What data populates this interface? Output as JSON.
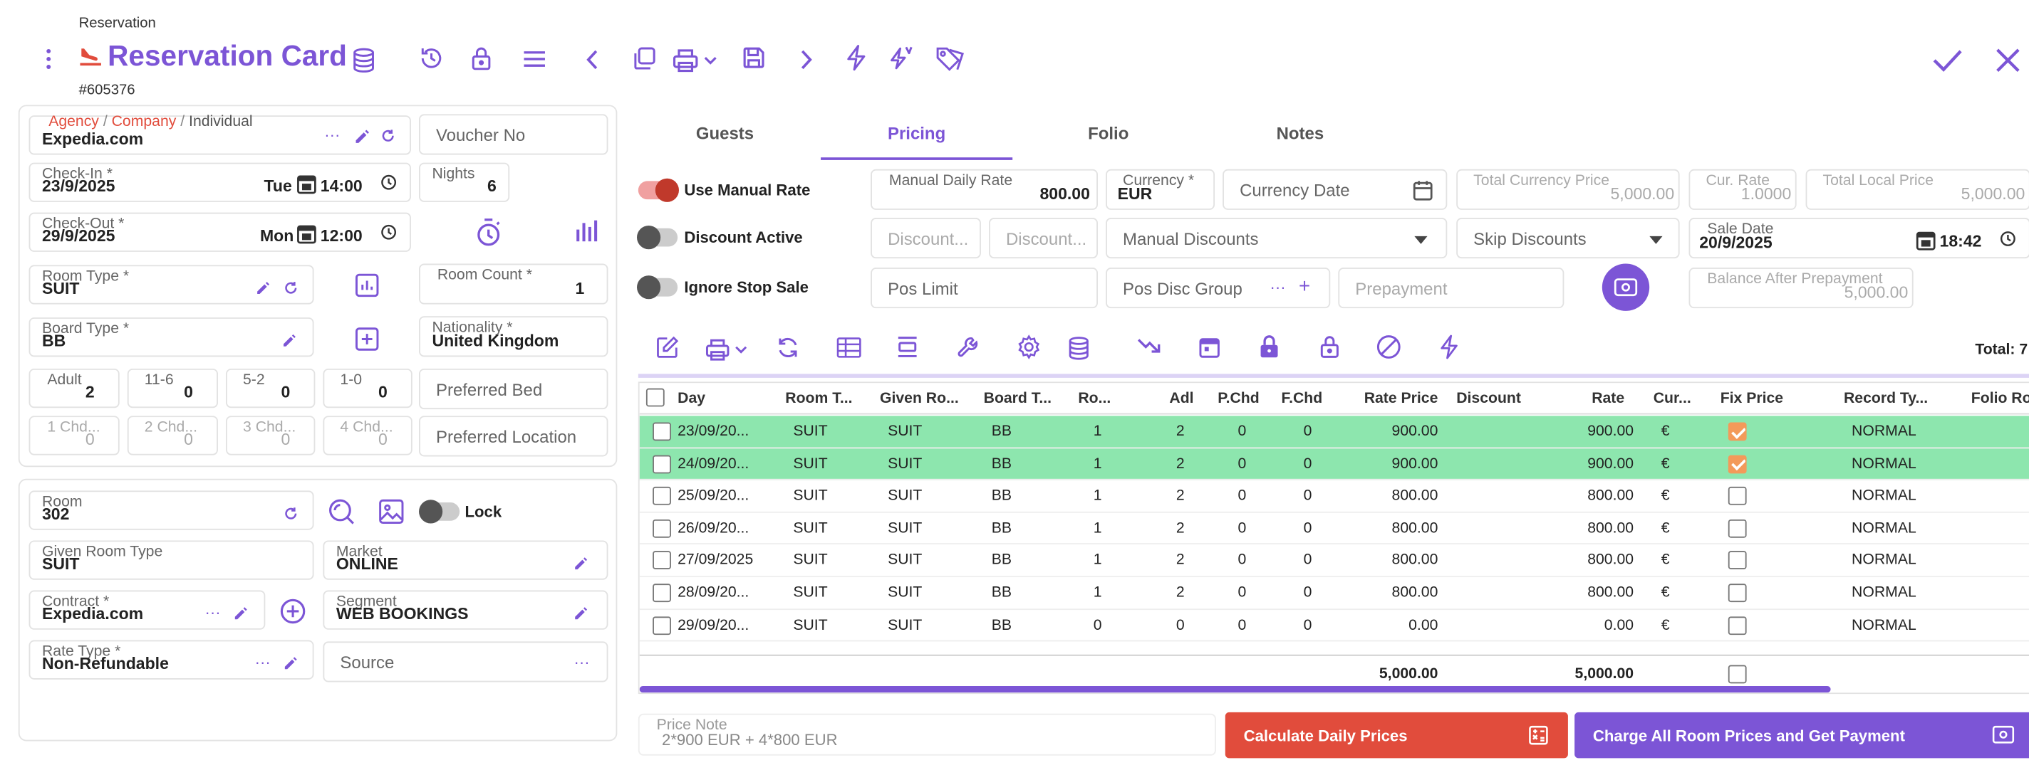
{
  "header": {
    "breadcrumb": "Reservation",
    "title": "Reservation Card",
    "record_no": "#605376"
  },
  "guest": {
    "agency": "Agency",
    "company": "Company",
    "individual": "Individual",
    "sep": "/",
    "name": "Expedia.com",
    "voucher_placeholder": "Voucher No"
  },
  "checkin": {
    "label": "Check-In *",
    "date": "23/9/2025",
    "day": "Tue",
    "time": "14:00"
  },
  "nights": {
    "label": "Nights",
    "value": "6"
  },
  "checkout": {
    "label": "Check-Out *",
    "date": "29/9/2025",
    "day": "Mon",
    "time": "12:00"
  },
  "room_type": {
    "label": "Room Type *",
    "value": "SUIT"
  },
  "room_count": {
    "label": "Room Count *",
    "value": "1"
  },
  "board_type": {
    "label": "Board Type *",
    "value": "BB"
  },
  "nationality": {
    "label": "Nationality *",
    "value": "United Kingdom"
  },
  "pax": [
    {
      "label": "Adult",
      "value": "2"
    },
    {
      "label": "11-6",
      "value": "0"
    },
    {
      "label": "5-2",
      "value": "0"
    },
    {
      "label": "1-0",
      "value": "0"
    }
  ],
  "chd": [
    {
      "label": "1 Chd...",
      "value": "0"
    },
    {
      "label": "2 Chd...",
      "value": "0"
    },
    {
      "label": "3 Chd...",
      "value": "0"
    },
    {
      "label": "4 Chd...",
      "value": "0"
    }
  ],
  "preferred_bed": "Preferred Bed",
  "preferred_location": "Preferred Location",
  "room": {
    "label": "Room",
    "value": "302",
    "lock_label": "Lock"
  },
  "given_room_type": {
    "label": "Given Room Type",
    "value": "SUIT"
  },
  "market": {
    "label": "Market",
    "value": "ONLINE"
  },
  "contract": {
    "label": "Contract *",
    "value": "Expedia.com"
  },
  "segment": {
    "label": "Segment",
    "value": "WEB BOOKINGS"
  },
  "rate_type": {
    "label": "Rate Type *",
    "value": "Non-Refundable"
  },
  "source": "Source",
  "tabs": [
    "Guests",
    "Pricing",
    "Folio",
    "Notes"
  ],
  "pricing": {
    "use_manual_rate": "Use Manual Rate",
    "discount_active": "Discount Active",
    "ignore_stop_sale": "Ignore Stop Sale",
    "manual_daily_rate": {
      "label": "Manual Daily Rate",
      "value": "800.00"
    },
    "currency": {
      "label": "Currency *",
      "value": "EUR"
    },
    "currency_date": "Currency Date",
    "total_currency_price": {
      "label": "Total Currency Price",
      "value": "5,000.00"
    },
    "cur_rate": {
      "label": "Cur. Rate",
      "value": "1.0000"
    },
    "total_local_price": {
      "label": "Total Local Price",
      "value": "5,000.00"
    },
    "discount1": "Discount...",
    "discount2": "Discount...",
    "manual_discounts": "Manual Discounts",
    "skip_discounts": "Skip Discounts",
    "sale_date": {
      "label": "Sale Date",
      "date": "20/9/2025",
      "time": "18:42"
    },
    "pos_limit": "Pos Limit",
    "pos_disc_group": "Pos Disc Group",
    "prepayment": "Prepayment",
    "balance_after": {
      "label": "Balance After Prepayment",
      "value": "5,000.00"
    }
  },
  "grid": {
    "total": "Total: 7",
    "headers": [
      "Day",
      "Room T...",
      "Given Ro...",
      "Board T...",
      "Ro...",
      "Adl",
      "P.Chd",
      "F.Chd",
      "Rate Price",
      "Discount",
      "Rate",
      "Cur...",
      "Fix Price",
      "Record Ty...",
      "Folio Roo"
    ],
    "rows": [
      {
        "day": "23/09/20...",
        "room": "SUIT",
        "given": "SUIT",
        "board": "BB",
        "ro": "1",
        "adl": "2",
        "pchd": "0",
        "fchd": "0",
        "rate_price": "900.00",
        "discount": "",
        "rate": "900.00",
        "cur": "€",
        "fix": true,
        "record": "NORMAL",
        "green": true
      },
      {
        "day": "24/09/20...",
        "room": "SUIT",
        "given": "SUIT",
        "board": "BB",
        "ro": "1",
        "adl": "2",
        "pchd": "0",
        "fchd": "0",
        "rate_price": "900.00",
        "discount": "",
        "rate": "900.00",
        "cur": "€",
        "fix": true,
        "record": "NORMAL",
        "green": true
      },
      {
        "day": "25/09/20...",
        "room": "SUIT",
        "given": "SUIT",
        "board": "BB",
        "ro": "1",
        "adl": "2",
        "pchd": "0",
        "fchd": "0",
        "rate_price": "800.00",
        "discount": "",
        "rate": "800.00",
        "cur": "€",
        "fix": false,
        "record": "NORMAL",
        "green": false
      },
      {
        "day": "26/09/20...",
        "room": "SUIT",
        "given": "SUIT",
        "board": "BB",
        "ro": "1",
        "adl": "2",
        "pchd": "0",
        "fchd": "0",
        "rate_price": "800.00",
        "discount": "",
        "rate": "800.00",
        "cur": "€",
        "fix": false,
        "record": "NORMAL",
        "green": false
      },
      {
        "day": "27/09/2025",
        "room": "SUIT",
        "given": "SUIT",
        "board": "BB",
        "ro": "1",
        "adl": "2",
        "pchd": "0",
        "fchd": "0",
        "rate_price": "800.00",
        "discount": "",
        "rate": "800.00",
        "cur": "€",
        "fix": false,
        "record": "NORMAL",
        "green": false
      },
      {
        "day": "28/09/20...",
        "room": "SUIT",
        "given": "SUIT",
        "board": "BB",
        "ro": "1",
        "adl": "2",
        "pchd": "0",
        "fchd": "0",
        "rate_price": "800.00",
        "discount": "",
        "rate": "800.00",
        "cur": "€",
        "fix": false,
        "record": "NORMAL",
        "green": false
      },
      {
        "day": "29/09/20...",
        "room": "SUIT",
        "given": "SUIT",
        "board": "BB",
        "ro": "0",
        "adl": "0",
        "pchd": "0",
        "fchd": "0",
        "rate_price": "0.00",
        "discount": "",
        "rate": "0.00",
        "cur": "€",
        "fix": false,
        "record": "NORMAL",
        "green": false
      }
    ],
    "footer": {
      "rate_price": "5,000.00",
      "rate": "5,000.00"
    }
  },
  "price_note": {
    "label": "Price Note",
    "value": "2*900 EUR  + 4*800 EUR"
  },
  "buttons": {
    "calculate": "Calculate Daily Prices",
    "charge": "Charge All Room Prices and Get Payment"
  },
  "colors": {
    "accent": "#7c55d6",
    "danger": "#e14c3c",
    "row_highlight": "#8de6ae",
    "check": "#f39a5a"
  }
}
